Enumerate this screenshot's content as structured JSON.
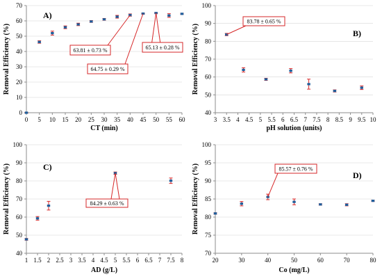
{
  "colors": {
    "marker": "#1f5f9c",
    "error_bar": "#d62728",
    "annotation": "#d62728",
    "axis": "#8c8c8c",
    "grid": "#d6d6d6"
  },
  "chart_data": [
    {
      "type": "scatter",
      "panel_label": "A)",
      "xlabel": "CT (min)",
      "ylabel": "Removal Efficiency (%)",
      "xlim": [
        0,
        60
      ],
      "ylim": [
        0,
        70
      ],
      "xticks": [
        0,
        5,
        10,
        15,
        20,
        25,
        30,
        35,
        40,
        45,
        50,
        55,
        60
      ],
      "yticks": [
        0,
        10,
        20,
        30,
        40,
        50,
        60,
        70
      ],
      "grid": "horizontal",
      "x": [
        0,
        5,
        10,
        15,
        20,
        25,
        30,
        35,
        40,
        45,
        50,
        55,
        60
      ],
      "y": [
        0,
        46.2,
        52,
        55.8,
        57.7,
        59.6,
        61,
        62.7,
        63.81,
        64.75,
        65.13,
        63.5,
        64.6
      ],
      "err": [
        0.3,
        0.8,
        1.3,
        0.9,
        0.8,
        0.6,
        0.6,
        0.9,
        0.73,
        0.29,
        0.28,
        1.2,
        0.4
      ],
      "annotations": [
        {
          "text": "63.81 ± 0.73 %",
          "x": 40,
          "y": 63.81
        },
        {
          "text": "64.75 ± 0.29 %",
          "x": 45,
          "y": 64.75
        },
        {
          "text": "65.13 ± 0.28 %",
          "x": 50,
          "y": 65.13
        }
      ]
    },
    {
      "type": "scatter",
      "panel_label": "B)",
      "xlabel": "pH solution (units)",
      "ylabel": "Removal Efficiency (%)",
      "xlim": [
        3,
        10
      ],
      "ylim": [
        40,
        100
      ],
      "xticks": [
        3,
        3.5,
        4,
        4.5,
        5,
        5.5,
        6,
        6.5,
        7,
        7.5,
        8,
        8.5,
        9,
        9.5,
        10
      ],
      "yticks": [
        40,
        50,
        60,
        70,
        80,
        90,
        100
      ],
      "grid": "horizontal",
      "x": [
        3.5,
        4.25,
        5.25,
        6.35,
        7.15,
        8.3,
        9.5
      ],
      "y": [
        83.78,
        64,
        58.7,
        63.5,
        56,
        52.2,
        54
      ],
      "err": [
        0.65,
        1.2,
        0.6,
        1.2,
        2.8,
        0.6,
        1
      ],
      "annotations": [
        {
          "text": "83.78 ± 0.65 %",
          "x": 3.5,
          "y": 83.78
        }
      ]
    },
    {
      "type": "scatter",
      "panel_label": "C)",
      "xlabel": "AD (g/L)",
      "ylabel": "Removal Efficiency (%)",
      "xlim": [
        1,
        8
      ],
      "ylim": [
        40,
        100
      ],
      "xticks": [
        1,
        1.5,
        2,
        2.5,
        3,
        3.5,
        4,
        4.5,
        5,
        5.5,
        6,
        6.5,
        7,
        7.5,
        8
      ],
      "yticks": [
        40,
        50,
        60,
        70,
        80,
        90,
        100
      ],
      "grid": "horizontal",
      "x": [
        1,
        1.5,
        2,
        5,
        7.5
      ],
      "y": [
        47.7,
        59.3,
        66.3,
        84.29,
        80.1
      ],
      "err": [
        0.5,
        1,
        2.4,
        0.63,
        1.5
      ],
      "annotations": [
        {
          "text": "84.29 ± 0.63 %",
          "x": 5,
          "y": 84.29
        }
      ]
    },
    {
      "type": "scatter",
      "panel_label": "D)",
      "xlabel": "Co (mg/L)",
      "ylabel": "Removal Efficiency (%)",
      "xlim": [
        20,
        80
      ],
      "ylim": [
        70,
        100
      ],
      "xticks": [
        20,
        30,
        40,
        50,
        60,
        70,
        80
      ],
      "yticks": [
        70,
        75,
        80,
        85,
        90,
        95,
        100
      ],
      "grid": "horizontal",
      "x": [
        20,
        30,
        40,
        50,
        60,
        70,
        80
      ],
      "y": [
        81,
        83.7,
        85.57,
        84.2,
        83.5,
        83.4,
        84.5
      ],
      "err": [
        0.2,
        0.6,
        0.76,
        0.8,
        0.2,
        0.3,
        0.2
      ],
      "annotations": [
        {
          "text": "85.57 ± 0.76 %",
          "x": 40,
          "y": 85.57
        }
      ]
    }
  ]
}
